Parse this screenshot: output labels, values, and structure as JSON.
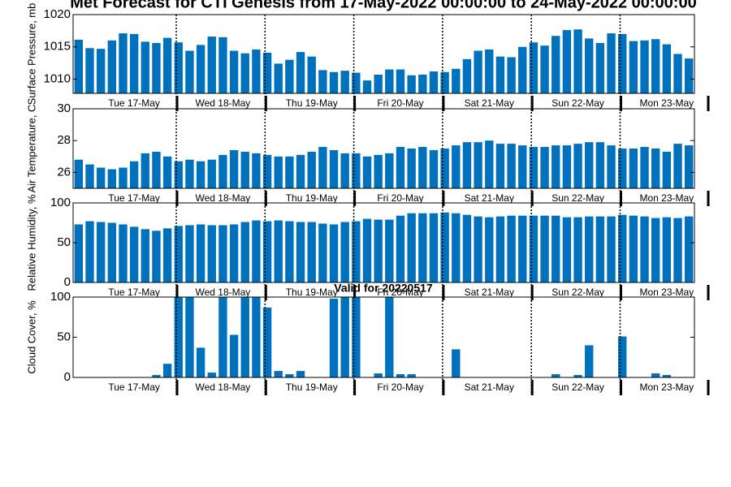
{
  "chart_data": [
    {
      "type": "bar",
      "title": "Met Forecast for CTI Genesis from 17-May-2022 00:00:00 to 24-May-2022 00:00:00",
      "ylabel": "Surface Pressure, mb",
      "color": "#0072bd",
      "categories": [
        null,
        null,
        null,
        null,
        null,
        "Tue 17-May",
        null,
        null,
        null,
        null,
        null,
        null,
        null,
        "Wed 18-May",
        null,
        null,
        null,
        null,
        null,
        null,
        null,
        "Thu 19-May",
        null,
        null,
        null,
        null,
        null,
        null,
        null,
        "Fri 20-May",
        null,
        null,
        null,
        null,
        null,
        null,
        null,
        "Sat 21-May",
        null,
        null,
        null,
        null,
        null,
        null,
        null,
        "Sun 22-May",
        null,
        null,
        null,
        null,
        null,
        null,
        null,
        "Mon 23-May",
        null,
        null
      ],
      "values": [
        1016.1,
        1014.8,
        1014.7,
        1016.0,
        1017.1,
        1017.0,
        1015.8,
        1015.6,
        1016.4,
        1015.7,
        1014.4,
        1015.3,
        1016.6,
        1016.5,
        1014.4,
        1014.0,
        1014.6,
        1014.1,
        1012.4,
        1013.0,
        1014.2,
        1013.5,
        1011.4,
        1011.1,
        1011.3,
        1011.0,
        1009.8,
        1010.7,
        1011.5,
        1011.5,
        1010.6,
        1010.7,
        1011.2,
        1011.1,
        1011.6,
        1013.1,
        1014.4,
        1014.6,
        1013.5,
        1013.4,
        1015.0,
        1015.7,
        1015.2,
        1016.7,
        1017.6,
        1017.7,
        1016.3,
        1015.6,
        1017.1,
        1017.0,
        1015.9,
        1016.0,
        1016.2,
        1015.4,
        1013.9,
        1013.2
      ],
      "ylim": [
        1007.8,
        1020
      ],
      "yticks": [
        1010,
        1015,
        1020
      ]
    },
    {
      "type": "bar",
      "ylabel": "Air Temperature, C",
      "color": "#0072bd",
      "categories": [
        null,
        null,
        null,
        null,
        null,
        "Tue 17-May",
        null,
        null,
        null,
        null,
        null,
        null,
        null,
        "Wed 18-May",
        null,
        null,
        null,
        null,
        null,
        null,
        null,
        "Thu 19-May",
        null,
        null,
        null,
        null,
        null,
        null,
        null,
        "Fri 20-May",
        null,
        null,
        null,
        null,
        null,
        null,
        null,
        "Sat 21-May",
        null,
        null,
        null,
        null,
        null,
        null,
        null,
        "Sun 22-May",
        null,
        null,
        null,
        null,
        null,
        null,
        null,
        "Mon 23-May",
        null,
        null
      ],
      "values": [
        26.8,
        26.5,
        26.3,
        26.2,
        26.3,
        26.7,
        27.2,
        27.3,
        27.0,
        26.7,
        26.8,
        26.7,
        26.8,
        27.1,
        27.4,
        27.3,
        27.2,
        27.1,
        27.0,
        27.0,
        27.1,
        27.3,
        27.6,
        27.4,
        27.2,
        27.2,
        27.0,
        27.1,
        27.2,
        27.6,
        27.5,
        27.6,
        27.4,
        27.5,
        27.7,
        27.9,
        27.9,
        28.0,
        27.8,
        27.8,
        27.7,
        27.6,
        27.6,
        27.7,
        27.7,
        27.8,
        27.9,
        27.9,
        27.7,
        27.5,
        27.5,
        27.6,
        27.5,
        27.3,
        27.8,
        27.7
      ],
      "ylim": [
        25,
        30
      ],
      "yticks": [
        26,
        28,
        30
      ]
    },
    {
      "type": "bar",
      "ylabel": "Relative Humidity, %",
      "color": "#0072bd",
      "categories": [
        null,
        null,
        null,
        null,
        null,
        "Tue 17-May",
        null,
        null,
        null,
        null,
        null,
        null,
        null,
        "Wed 18-May",
        null,
        null,
        null,
        null,
        null,
        null,
        null,
        "Thu 19-May",
        null,
        null,
        null,
        null,
        null,
        null,
        null,
        "Fri 20-May",
        null,
        null,
        null,
        null,
        null,
        null,
        null,
        "Sat 21-May",
        null,
        null,
        null,
        null,
        null,
        null,
        null,
        "Sun 22-May",
        null,
        null,
        null,
        null,
        null,
        null,
        null,
        "Mon 23-May",
        null,
        null
      ],
      "values": [
        73,
        77,
        76,
        75,
        73,
        70,
        67,
        65,
        68,
        71,
        72,
        73,
        72,
        72,
        73,
        76,
        78,
        77,
        78,
        77,
        76,
        76,
        74,
        73,
        76,
        77,
        80,
        79,
        79,
        84,
        87,
        87,
        87,
        88,
        87,
        85,
        83,
        82,
        83,
        84,
        84,
        84,
        84,
        84,
        82,
        82,
        83,
        83,
        83,
        85,
        84,
        83,
        81,
        82,
        81,
        83
      ],
      "ylim": [
        0,
        100
      ],
      "yticks": [
        0,
        50,
        100
      ]
    },
    {
      "type": "bar",
      "title": "Valid for 20220517",
      "ylabel": "Cloud Cover, %",
      "color": "#0072bd",
      "categories": [
        null,
        null,
        null,
        null,
        null,
        "Tue 17-May",
        null,
        null,
        null,
        null,
        null,
        null,
        null,
        "Wed 18-May",
        null,
        null,
        null,
        null,
        null,
        null,
        null,
        "Thu 19-May",
        null,
        null,
        null,
        null,
        null,
        null,
        null,
        "Fri 20-May",
        null,
        null,
        null,
        null,
        null,
        null,
        null,
        "Sat 21-May",
        null,
        null,
        null,
        null,
        null,
        null,
        null,
        "Sun 22-May",
        null,
        null,
        null,
        null,
        null,
        null,
        null,
        "Mon 23-May",
        null,
        null
      ],
      "values": [
        0,
        0,
        0,
        0,
        0,
        0,
        0,
        3,
        17,
        100,
        100,
        37,
        6,
        100,
        53,
        100,
        100,
        87,
        8,
        4,
        8,
        0,
        0,
        98,
        100,
        100,
        0,
        5,
        100,
        4,
        4,
        0,
        0,
        0,
        35,
        0,
        0,
        0,
        0,
        0,
        0,
        0,
        0,
        4,
        0,
        3,
        40,
        0,
        0,
        51,
        0,
        0,
        5,
        3,
        0,
        0
      ],
      "ylim": [
        0,
        100
      ],
      "yticks": [
        0,
        50,
        100
      ]
    }
  ]
}
